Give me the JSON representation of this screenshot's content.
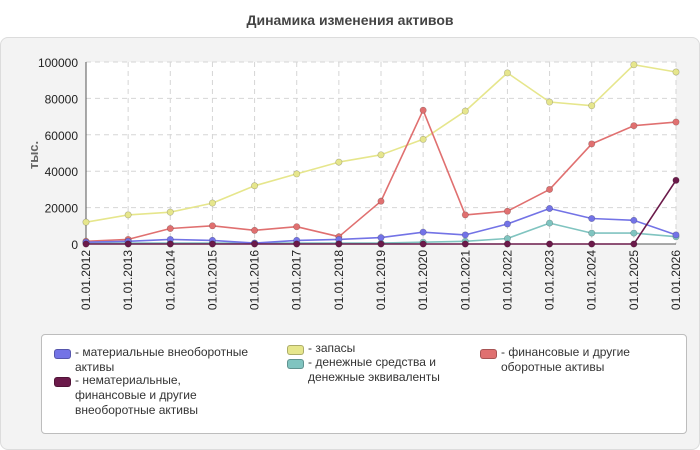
{
  "title": "Динамика изменения активов",
  "chart_data": {
    "type": "line",
    "title": "Динамика изменения активов",
    "xlabel": "",
    "ylabel": "тыс.",
    "ylim": [
      0,
      100000
    ],
    "yticks": [
      "0",
      "20000",
      "40000",
      "60000",
      "80000",
      "100000"
    ],
    "grid": true,
    "legend_position": "bottom",
    "categories": [
      "01.01.2012",
      "01.01.2013",
      "01.01.2014",
      "01.01.2015",
      "01.01.2016",
      "01.01.2017",
      "01.01.2018",
      "01.01.2019",
      "01.01.2020",
      "01.01.2021",
      "01.01.2022",
      "01.01.2023",
      "01.01.2024",
      "01.01.2025",
      "01.01.2026"
    ],
    "series": [
      {
        "name": "- материальные внеоборотные активы",
        "color": "#7373e6",
        "values": [
          1000,
          1500,
          2500,
          2000,
          500,
          2000,
          2500,
          3500,
          6500,
          5000,
          11000,
          19500,
          14000,
          13000,
          5000
        ]
      },
      {
        "name": "- нематериальные, финансовые и другие внеоборотные активы",
        "color": "#6b1a4a",
        "values": [
          0,
          0,
          0,
          0,
          0,
          0,
          0,
          0,
          0,
          0,
          0,
          0,
          0,
          0,
          35000
        ]
      },
      {
        "name": "- запасы",
        "color": "#e6e68c",
        "values": [
          12000,
          16000,
          17500,
          22500,
          32000,
          38500,
          45000,
          49000,
          57500,
          73000,
          94000,
          78000,
          76000,
          98500,
          94500
        ]
      },
      {
        "name": "- денежные средства и денежные эквиваленты",
        "color": "#80c4c0",
        "values": [
          500,
          500,
          500,
          500,
          500,
          500,
          500,
          500,
          1000,
          1500,
          3000,
          11500,
          6000,
          6000,
          4000
        ]
      },
      {
        "name": "- финансовые и другие оборотные активы",
        "color": "#e07070",
        "values": [
          1500,
          2500,
          8500,
          10000,
          7500,
          9500,
          4000,
          23500,
          73500,
          16000,
          18000,
          30000,
          55000,
          65000,
          67000
        ]
      }
    ]
  }
}
